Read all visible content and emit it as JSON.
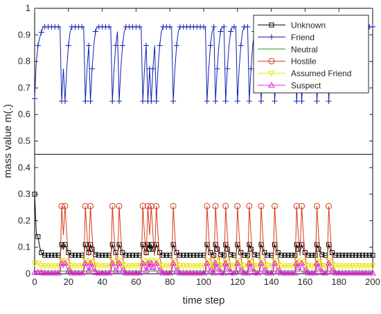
{
  "chart_data": {
    "type": "line",
    "xlabel": "time step",
    "ylabel": "mass value m(.)",
    "xlim": [
      0,
      200
    ],
    "ylim": [
      0,
      1
    ],
    "xticks": [
      0,
      20,
      40,
      60,
      80,
      100,
      120,
      140,
      160,
      180,
      200
    ],
    "yticks": [
      0,
      0.1,
      0.2,
      0.3,
      0.4,
      0.5,
      0.6,
      0.7,
      0.8,
      0.9,
      1
    ],
    "legend_position": "top-right",
    "drops": [
      16,
      18,
      30,
      33,
      46,
      50,
      64,
      67,
      69,
      72,
      82,
      102,
      107,
      113,
      120,
      127,
      134,
      142,
      155,
      158,
      167,
      174
    ],
    "colors": {
      "Unknown": "#000000",
      "Friend": "#0b1fb3",
      "Neutral": "#16a016",
      "Hostile": "#d63a1a",
      "Assumed Friend": "#e6e600",
      "Suspect": "#e020e0",
      "frame": "#000000",
      "divider": "#000000"
    },
    "series": [
      {
        "name": "Unknown",
        "marker": "square",
        "baseline": 0.07,
        "drop_value": 0.11,
        "start": [
          0.3,
          0.15,
          0.14,
          0.1,
          0.08
        ]
      },
      {
        "name": "Friend",
        "marker": "plus",
        "baseline": 0.93,
        "drop_value": 0.65,
        "start": [
          0.66,
          0.8,
          0.86,
          0.89,
          0.91
        ]
      },
      {
        "name": "Neutral",
        "marker": "none",
        "baseline": 0.01,
        "drop_value": 0.01,
        "start": [
          0.01,
          0.01,
          0.01,
          0.01,
          0.01
        ]
      },
      {
        "name": "Hostile",
        "marker": "circle",
        "baseline": 0.005,
        "drop_value": 0.255,
        "start": [
          0.01,
          0.01,
          0.01,
          0.01,
          0.01
        ]
      },
      {
        "name": "Assumed Friend",
        "marker": "triangle-down",
        "baseline": 0.03,
        "drop_value": 0.05,
        "start": [
          0.04,
          0.04,
          0.04,
          0.03,
          0.03
        ]
      },
      {
        "name": "Suspect",
        "marker": "triangle-up",
        "baseline": 0.003,
        "drop_value": 0.04,
        "start": [
          0.005,
          0.005,
          0.005,
          0.005,
          0.005
        ]
      }
    ]
  }
}
